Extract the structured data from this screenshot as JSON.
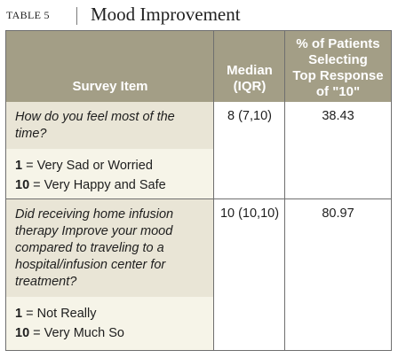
{
  "header": {
    "table_label": "TABLE 5",
    "title": "Mood Improvement"
  },
  "columns": {
    "survey_item": "Survey Item",
    "median_line1": "Median",
    "median_line2": "(IQR)",
    "pct_line1": "% of Patients",
    "pct_line2": "Selecting",
    "pct_line3": "Top Response",
    "pct_line4": "of \"10\""
  },
  "rows": [
    {
      "question": "How do you feel most of the time?",
      "scale_low_num": "1",
      "scale_low_text": "= Very Sad or Worried",
      "scale_high_num": "10",
      "scale_high_text": "= Very Happy and Safe",
      "median": "8 (7,10)",
      "percent": "38.43"
    },
    {
      "question": "Did receiving home infusion therapy Improve your mood compared to traveling to a hospital/infusion center for treatment?",
      "scale_low_num": "1",
      "scale_low_text": "= Not Really",
      "scale_high_num": "10",
      "scale_high_text": "= Very Much So",
      "median": "10 (10,10)",
      "percent": "80.97"
    }
  ]
}
